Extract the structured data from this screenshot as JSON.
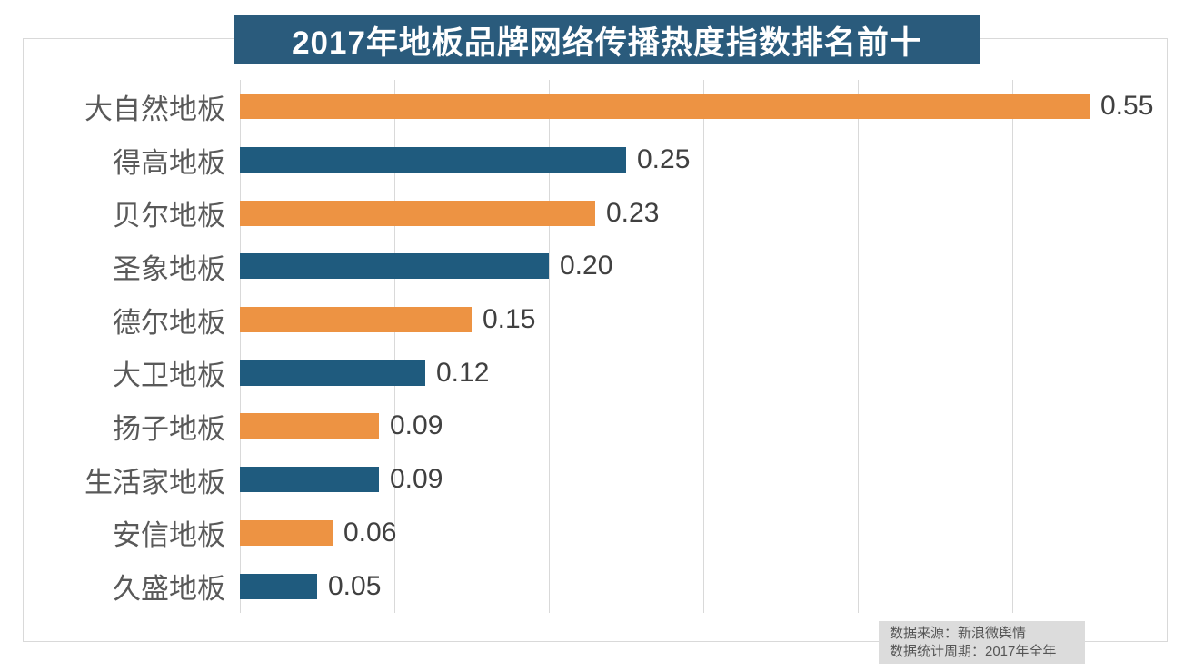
{
  "title": {
    "text": "2017年地板品牌网络传播热度指数排名前十"
  },
  "chart_data": {
    "type": "bar",
    "orientation": "horizontal",
    "title": "2017年地板品牌网络传播热度指数排名前十",
    "categories": [
      "大自然地板",
      "得高地板",
      "贝尔地板",
      "圣象地板",
      "德尔地板",
      "大卫地板",
      "扬子地板",
      "生活家地板",
      "安信地板",
      "久盛地板"
    ],
    "values": [
      0.55,
      0.25,
      0.23,
      0.2,
      0.15,
      0.12,
      0.09,
      0.09,
      0.06,
      0.05
    ],
    "value_labels": [
      "0.55",
      "0.25",
      "0.23",
      "0.20",
      "0.15",
      "0.12",
      "0.09",
      "0.09",
      "0.06",
      "0.05"
    ],
    "xlabel": "",
    "ylabel": "",
    "xlim": [
      0,
      0.6
    ],
    "gridline_interval": 0.1,
    "grid": "vertical-gridlines-only",
    "legend": "none",
    "bar_colors_alternate": [
      "#ED9343",
      "#1F5B7E"
    ]
  },
  "footer_note": {
    "line1": "数据来源：新浪微舆情",
    "line2": "数据统计周期：2017年全年"
  },
  "colors": {
    "title_bg": "#2A5B7C",
    "orange": "#ED9343",
    "teal": "#1F5B7E",
    "gridline": "#D9D9D9",
    "frame_border": "#D9D9D9",
    "label_text": "#595959",
    "value_text": "#404040",
    "note_bg": "#DCDCDC",
    "note_text": "#555555"
  }
}
